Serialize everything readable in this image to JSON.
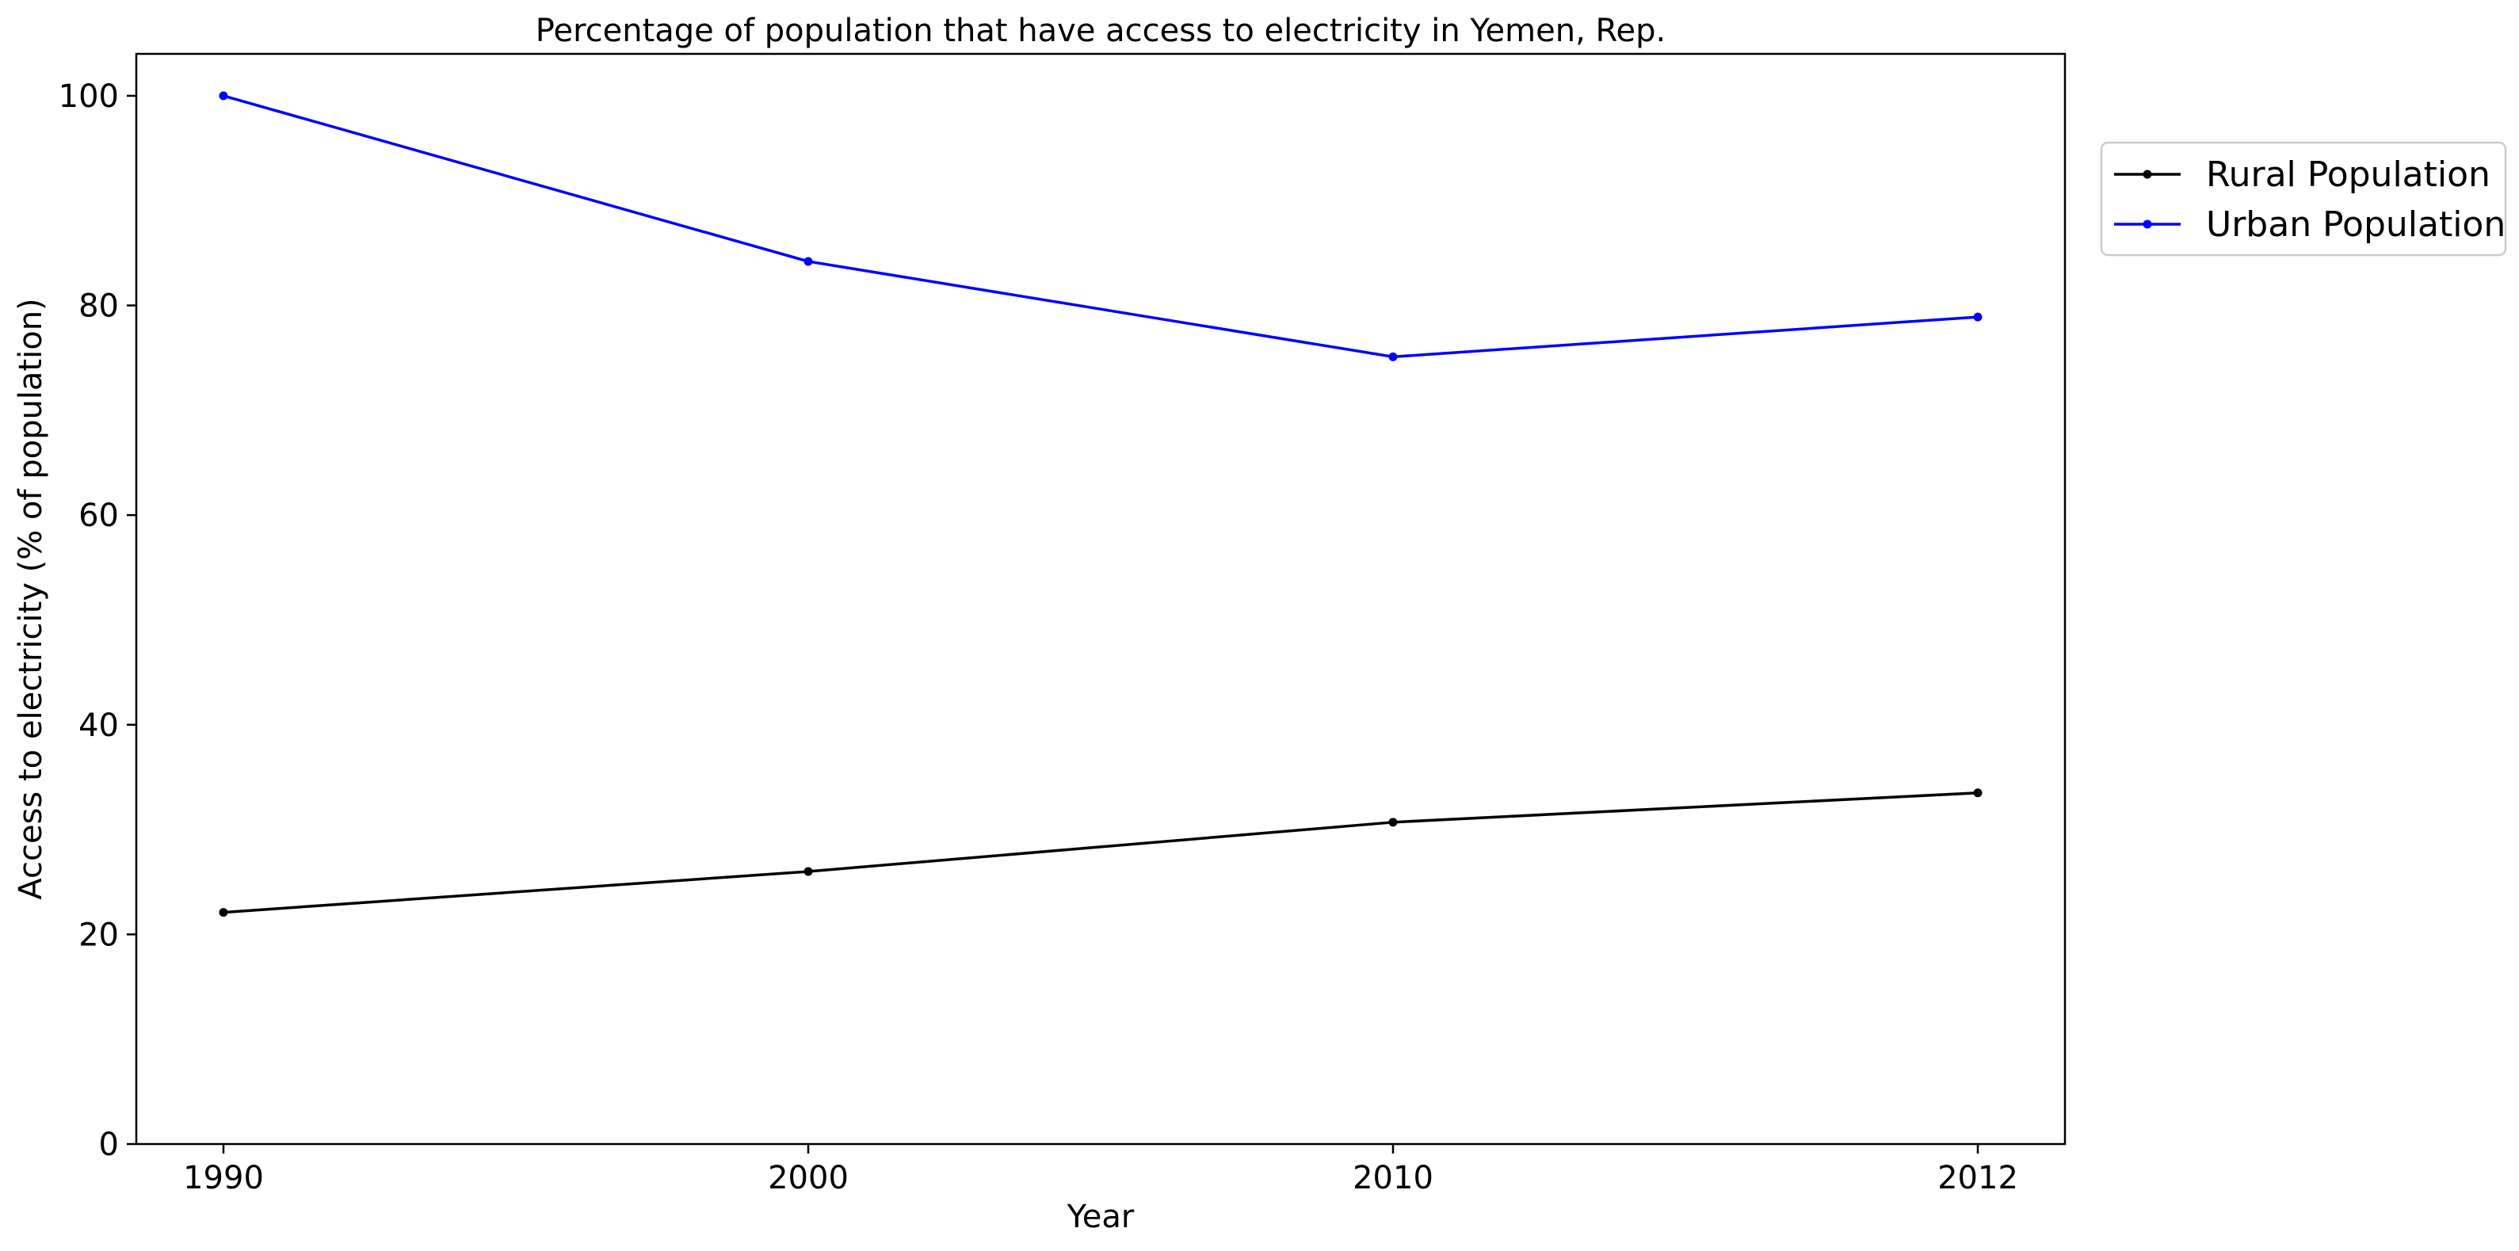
{
  "chart_data": {
    "type": "line",
    "title": "Percentage of population that have access to electricity in Yemen, Rep.",
    "xlabel": "Year",
    "ylabel": "Access to electricity (% of population)",
    "categories": [
      "1990",
      "2000",
      "2010",
      "2012"
    ],
    "ylim": [
      0,
      104
    ],
    "yticks": [
      0,
      20,
      40,
      60,
      80,
      100
    ],
    "grid": false,
    "legend_position": "top-right-outside",
    "series": [
      {
        "name": "Rural Population",
        "color": "#000000",
        "values": [
          22.1,
          26.0,
          30.7,
          33.5
        ]
      },
      {
        "name": "Urban Population",
        "color": "#0000ff",
        "values": [
          100.0,
          84.2,
          75.1,
          78.9
        ]
      }
    ]
  }
}
